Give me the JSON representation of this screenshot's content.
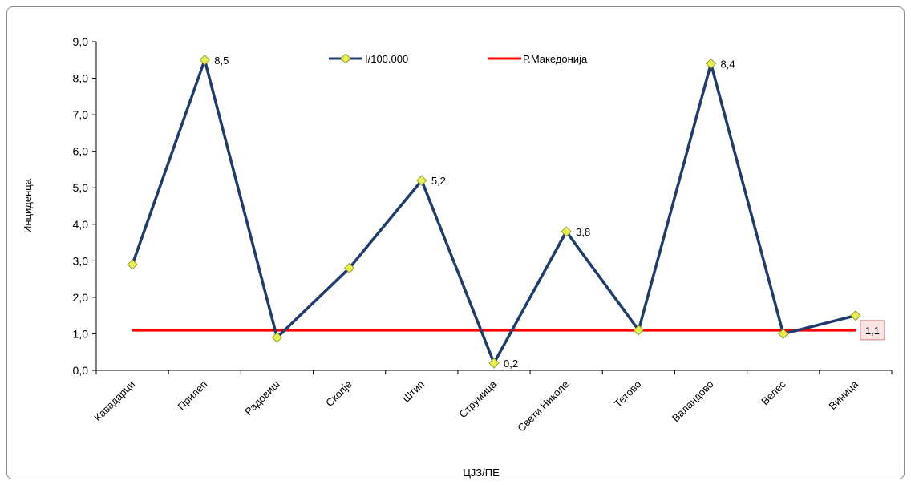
{
  "chart_data": {
    "type": "line",
    "xlabel": "ЦЈЗ/ПЕ",
    "ylabel": "Инциденца",
    "ylim": [
      0,
      9
    ],
    "y_tick_labels": [
      "0,0",
      "1,0",
      "2,0",
      "3,0",
      "4,0",
      "5,0",
      "6,0",
      "7,0",
      "8,0",
      "9,0"
    ],
    "grid": false,
    "legend_position": "top",
    "categories": [
      "Кавадарци",
      "Прилеп",
      "Радовиш",
      "Скопје",
      "Штип",
      "Струмица",
      "Свети Николе",
      "Тетово",
      "Валандово",
      "Велес",
      "Виница"
    ],
    "series": [
      {
        "name": "I/100.000",
        "color": "#1f3c6d",
        "marker_color": "#e6f04b",
        "values": [
          2.9,
          8.5,
          0.9,
          2.8,
          5.2,
          0.2,
          3.8,
          1.1,
          8.4,
          1.0,
          1.5
        ],
        "data_labels": [
          "",
          "8,5",
          "",
          "",
          "5,2",
          "0,2",
          "3,8",
          "",
          "8,4",
          "",
          ""
        ]
      },
      {
        "name": "Р.Македонија",
        "color": "#ff0000",
        "value": 1.1,
        "data_label": "1,1"
      }
    ]
  }
}
